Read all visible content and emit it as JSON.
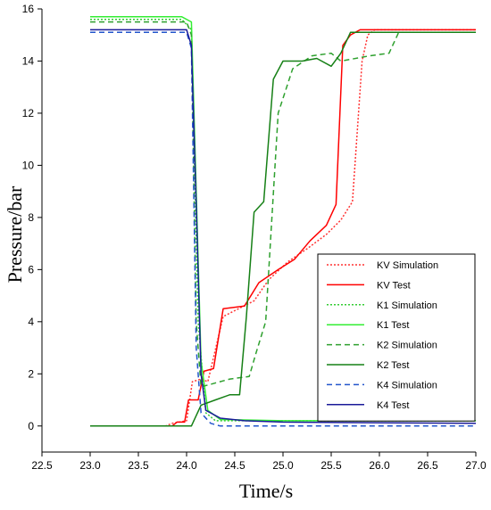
{
  "chart_data": {
    "type": "line",
    "title": "",
    "xlabel": "Time/s",
    "ylabel": "Pressure/bar",
    "xlim": [
      22.5,
      27.0
    ],
    "ylim": [
      -1,
      16
    ],
    "xticks": [
      "22.5",
      "23.0",
      "23.5",
      "24.0",
      "24.5",
      "25.0",
      "25.5",
      "26.0",
      "26.5",
      "27.0"
    ],
    "yticks": [
      "0",
      "2",
      "4",
      "6",
      "8",
      "10",
      "12",
      "14",
      "16"
    ],
    "grid": false,
    "legend_position": "bottom-right",
    "series": [
      {
        "name": "KV Simulation",
        "color": "#ff3333",
        "dash": "dotted",
        "points": [
          [
            23.0,
            0
          ],
          [
            23.78,
            0
          ],
          [
            23.85,
            0.1
          ],
          [
            24.0,
            0.2
          ],
          [
            24.06,
            1.7
          ],
          [
            24.15,
            1.8
          ],
          [
            24.22,
            1.7
          ],
          [
            24.38,
            4.2
          ],
          [
            24.7,
            4.8
          ],
          [
            24.85,
            5.6
          ],
          [
            25.05,
            6.3
          ],
          [
            25.25,
            6.8
          ],
          [
            25.45,
            7.35
          ],
          [
            25.6,
            7.9
          ],
          [
            25.72,
            8.6
          ],
          [
            25.82,
            14.0
          ],
          [
            25.88,
            15.0
          ],
          [
            25.95,
            15.2
          ],
          [
            27.0,
            15.2
          ]
        ]
      },
      {
        "name": "KV Test",
        "color": "#ff0000",
        "dash": "solid",
        "points": [
          [
            23.0,
            0
          ],
          [
            23.85,
            0
          ],
          [
            23.9,
            0.15
          ],
          [
            23.98,
            0.15
          ],
          [
            24.02,
            1.0
          ],
          [
            24.12,
            1.0
          ],
          [
            24.18,
            2.1
          ],
          [
            24.28,
            2.2
          ],
          [
            24.38,
            4.5
          ],
          [
            24.6,
            4.6
          ],
          [
            24.75,
            5.5
          ],
          [
            24.95,
            6.0
          ],
          [
            25.12,
            6.4
          ],
          [
            25.28,
            7.1
          ],
          [
            25.45,
            7.7
          ],
          [
            25.55,
            8.5
          ],
          [
            25.62,
            14.6
          ],
          [
            25.7,
            15.0
          ],
          [
            25.8,
            15.2
          ],
          [
            27.0,
            15.2
          ]
        ]
      },
      {
        "name": "K1 Simulation",
        "color": "#33cc33",
        "dash": "dotted",
        "points": [
          [
            23.0,
            15.6
          ],
          [
            23.95,
            15.6
          ],
          [
            24.05,
            15.2
          ],
          [
            24.12,
            4.0
          ],
          [
            24.2,
            0.5
          ],
          [
            24.3,
            0.2
          ],
          [
            27.0,
            0.2
          ]
        ]
      },
      {
        "name": "K1 Test",
        "color": "#33ee33",
        "dash": "solid",
        "points": [
          [
            23.0,
            15.7
          ],
          [
            23.95,
            15.7
          ],
          [
            24.05,
            15.5
          ],
          [
            24.1,
            9.0
          ],
          [
            24.15,
            2.5
          ],
          [
            24.22,
            0.6
          ],
          [
            24.35,
            0.25
          ],
          [
            25.0,
            0.2
          ],
          [
            27.0,
            0.2
          ]
        ]
      },
      {
        "name": "K2 Simulation",
        "color": "#2ea02e",
        "dash": "dashed",
        "points": [
          [
            23.0,
            15.5
          ],
          [
            24.0,
            15.5
          ],
          [
            24.05,
            15.0
          ],
          [
            24.1,
            4.0
          ],
          [
            24.15,
            1.5
          ],
          [
            24.25,
            1.6
          ],
          [
            24.45,
            1.8
          ],
          [
            24.65,
            1.9
          ],
          [
            24.72,
            2.8
          ],
          [
            24.82,
            4.0
          ],
          [
            24.95,
            12.0
          ],
          [
            25.1,
            13.7
          ],
          [
            25.3,
            14.2
          ],
          [
            25.5,
            14.3
          ],
          [
            25.6,
            14.0
          ],
          [
            25.9,
            14.2
          ],
          [
            26.1,
            14.3
          ],
          [
            26.2,
            15.1
          ],
          [
            27.0,
            15.1
          ]
        ]
      },
      {
        "name": "K2 Test",
        "color": "#168016",
        "dash": "solid",
        "points": [
          [
            23.0,
            0
          ],
          [
            24.05,
            0
          ],
          [
            24.15,
            0.8
          ],
          [
            24.3,
            1.0
          ],
          [
            24.45,
            1.2
          ],
          [
            24.55,
            1.2
          ],
          [
            24.62,
            4.2
          ],
          [
            24.7,
            8.2
          ],
          [
            24.8,
            8.6
          ],
          [
            24.9,
            13.3
          ],
          [
            25.0,
            14.0
          ],
          [
            25.2,
            14.0
          ],
          [
            25.35,
            14.1
          ],
          [
            25.5,
            13.8
          ],
          [
            25.6,
            14.3
          ],
          [
            25.7,
            15.1
          ],
          [
            27.0,
            15.1
          ]
        ]
      },
      {
        "name": "K4 Simulation",
        "color": "#2255cc",
        "dash": "dashed",
        "points": [
          [
            23.0,
            15.1
          ],
          [
            24.0,
            15.1
          ],
          [
            24.05,
            14.5
          ],
          [
            24.1,
            3.0
          ],
          [
            24.15,
            0.5
          ],
          [
            24.25,
            0.1
          ],
          [
            24.35,
            0.0
          ],
          [
            27.0,
            0.0
          ]
        ]
      },
      {
        "name": "K4 Test",
        "color": "#1a1a99",
        "dash": "solid",
        "points": [
          [
            23.0,
            15.2
          ],
          [
            24.0,
            15.2
          ],
          [
            24.05,
            14.6
          ],
          [
            24.1,
            8.5
          ],
          [
            24.15,
            2.0
          ],
          [
            24.2,
            0.6
          ],
          [
            24.35,
            0.3
          ],
          [
            24.6,
            0.2
          ],
          [
            25.0,
            0.15
          ],
          [
            27.0,
            0.1
          ]
        ]
      }
    ]
  }
}
